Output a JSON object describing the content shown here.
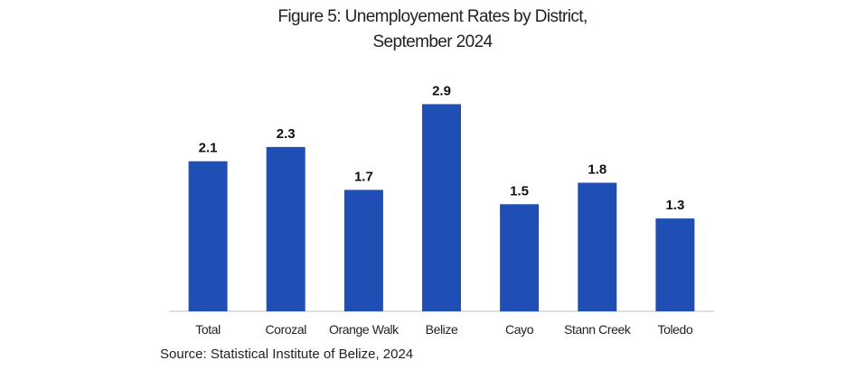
{
  "title_line1": "Figure 5: Unemployement Rates by District,",
  "title_line2": "September 2024",
  "source": "Source: Statistical Institute of Belize, 2024",
  "chart_data": {
    "type": "bar",
    "title": "Figure 5: Unemployement Rates by District, September 2024",
    "categories": [
      "Total",
      "Corozal",
      "Orange Walk",
      "Belize",
      "Cayo",
      "Stann Creek",
      "Toledo"
    ],
    "values": [
      2.1,
      2.3,
      1.7,
      2.9,
      1.5,
      1.8,
      1.3
    ],
    "data_labels": [
      "2.1",
      "2.3",
      "1.7",
      "2.9",
      "1.5",
      "1.8",
      "1.3"
    ],
    "xlabel": "",
    "ylabel": "",
    "ylim": [
      0,
      3.6
    ],
    "grid": false,
    "legend": "none",
    "bar_color": "#1f4fb4"
  }
}
